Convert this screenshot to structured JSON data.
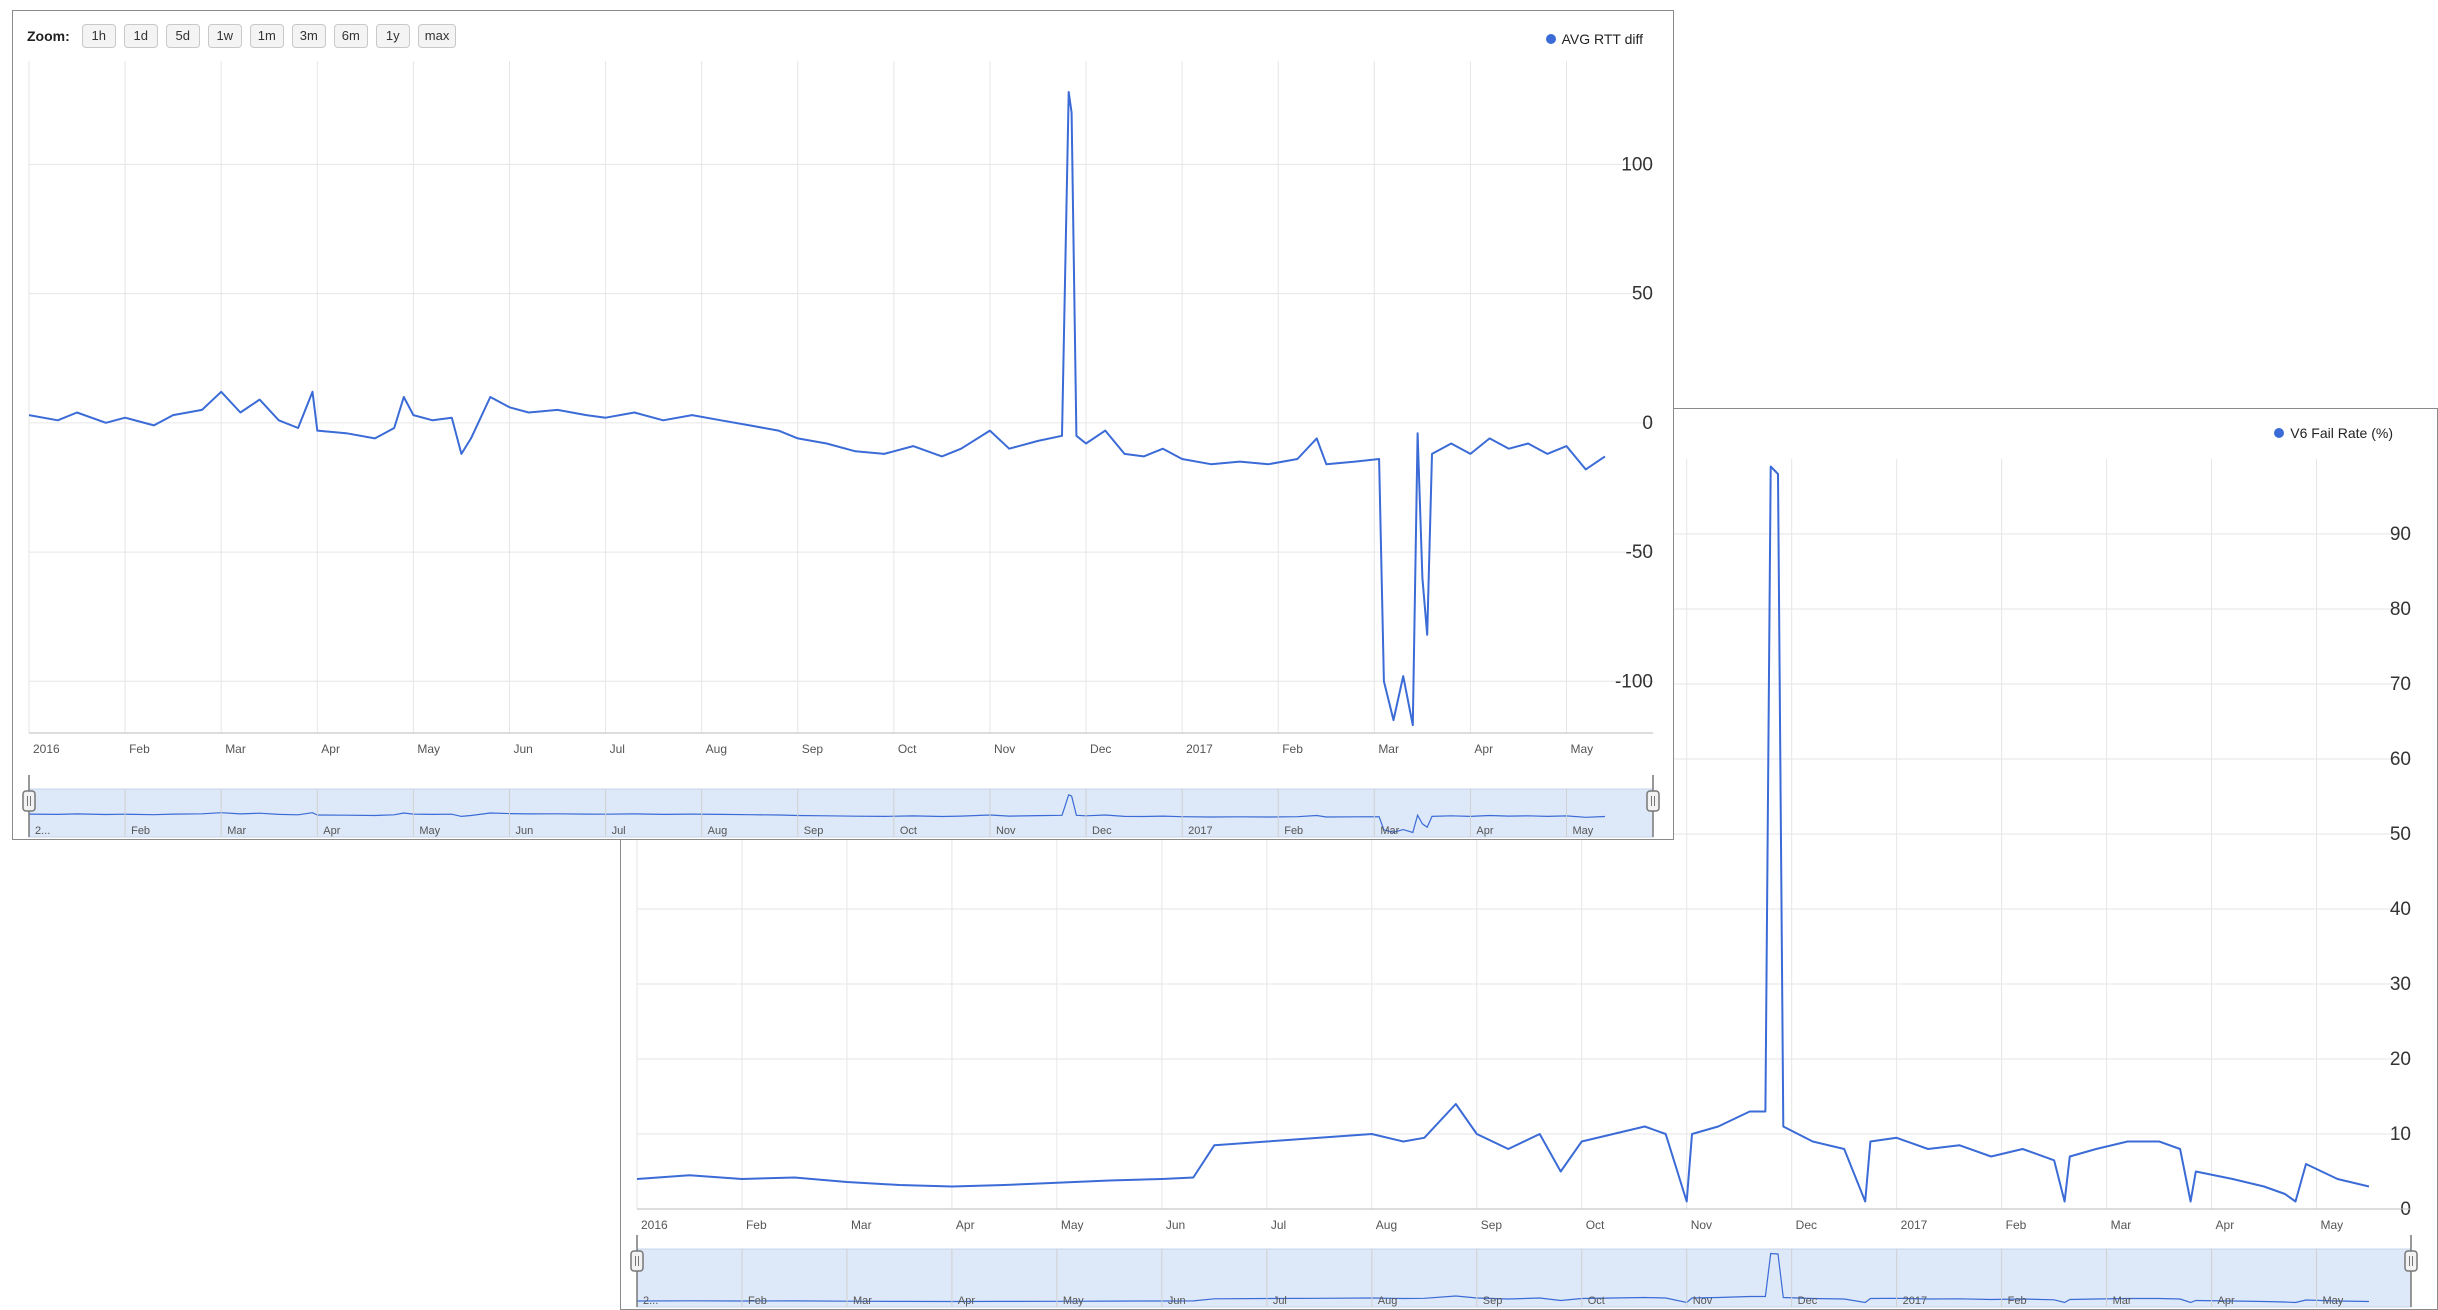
{
  "zoom": {
    "label": "Zoom:",
    "buttons": [
      "1h",
      "1d",
      "5d",
      "1w",
      "1m",
      "3m",
      "6m",
      "1y",
      "max"
    ]
  },
  "colors": {
    "line": "#3b6bd6",
    "grid": "#e6e6e6",
    "navigator_fill": "#dde8f8"
  },
  "chart_data": [
    {
      "type": "line",
      "legend": "AVG RTT diff",
      "legend_placement": "top-right",
      "y_axis_side": "right",
      "ylim": [
        -120,
        140
      ],
      "yticks": [
        100,
        50,
        0,
        -50,
        -100
      ],
      "xticks": [
        "2016",
        "Feb",
        "Mar",
        "Apr",
        "May",
        "Jun",
        "Jul",
        "Aug",
        "Sep",
        "Oct",
        "Nov",
        "Dec",
        "2017",
        "Feb",
        "Mar",
        "Apr",
        "May"
      ],
      "navigator_ticks": [
        "2...",
        "Feb",
        "Mar",
        "Apr",
        "May",
        "Jun",
        "Jul",
        "Aug",
        "Sep",
        "Oct",
        "Nov",
        "Dec",
        "2017",
        "Feb",
        "Mar",
        "Apr",
        "May"
      ],
      "grid": true,
      "x_range_months": [
        0,
        16.9
      ],
      "series": [
        {
          "name": "AVG RTT diff",
          "points": [
            [
              0.0,
              3
            ],
            [
              0.3,
              1
            ],
            [
              0.5,
              4
            ],
            [
              0.8,
              0
            ],
            [
              1.0,
              2
            ],
            [
              1.3,
              -1
            ],
            [
              1.5,
              3
            ],
            [
              1.8,
              5
            ],
            [
              2.0,
              12
            ],
            [
              2.2,
              4
            ],
            [
              2.4,
              9
            ],
            [
              2.6,
              1
            ],
            [
              2.8,
              -2
            ],
            [
              2.95,
              12
            ],
            [
              3.0,
              -3
            ],
            [
              3.3,
              -4
            ],
            [
              3.6,
              -6
            ],
            [
              3.8,
              -2
            ],
            [
              3.9,
              10
            ],
            [
              4.0,
              3
            ],
            [
              4.2,
              1
            ],
            [
              4.4,
              2
            ],
            [
              4.5,
              -12
            ],
            [
              4.6,
              -6
            ],
            [
              4.8,
              10
            ],
            [
              5.0,
              6
            ],
            [
              5.2,
              4
            ],
            [
              5.5,
              5
            ],
            [
              5.8,
              3
            ],
            [
              6.0,
              2
            ],
            [
              6.3,
              4
            ],
            [
              6.6,
              1
            ],
            [
              6.9,
              3
            ],
            [
              7.2,
              1
            ],
            [
              7.5,
              -1
            ],
            [
              7.8,
              -3
            ],
            [
              8.0,
              -6
            ],
            [
              8.3,
              -8
            ],
            [
              8.6,
              -11
            ],
            [
              8.9,
              -12
            ],
            [
              9.2,
              -9
            ],
            [
              9.5,
              -13
            ],
            [
              9.7,
              -10
            ],
            [
              10.0,
              -3
            ],
            [
              10.2,
              -10
            ],
            [
              10.5,
              -7
            ],
            [
              10.75,
              -5
            ],
            [
              10.82,
              128
            ],
            [
              10.85,
              120
            ],
            [
              10.9,
              -5
            ],
            [
              11.0,
              -8
            ],
            [
              11.2,
              -3
            ],
            [
              11.4,
              -12
            ],
            [
              11.6,
              -13
            ],
            [
              11.8,
              -10
            ],
            [
              12.0,
              -14
            ],
            [
              12.3,
              -16
            ],
            [
              12.6,
              -15
            ],
            [
              12.9,
              -16
            ],
            [
              13.2,
              -14
            ],
            [
              13.4,
              -6
            ],
            [
              13.5,
              -16
            ],
            [
              13.8,
              -15
            ],
            [
              14.05,
              -14
            ],
            [
              14.1,
              -100
            ],
            [
              14.2,
              -115
            ],
            [
              14.3,
              -98
            ],
            [
              14.4,
              -117
            ],
            [
              14.45,
              -4
            ],
            [
              14.5,
              -60
            ],
            [
              14.55,
              -82
            ],
            [
              14.6,
              -12
            ],
            [
              14.8,
              -8
            ],
            [
              15.0,
              -12
            ],
            [
              15.2,
              -6
            ],
            [
              15.4,
              -10
            ],
            [
              15.6,
              -8
            ],
            [
              15.8,
              -12
            ],
            [
              16.0,
              -9
            ],
            [
              16.2,
              -18
            ],
            [
              16.4,
              -13
            ]
          ]
        }
      ]
    },
    {
      "type": "line",
      "legend": "V6 Fail Rate (%)",
      "legend_placement": "top-right",
      "y_axis_side": "right",
      "ylim": [
        0,
        100
      ],
      "yticks": [
        90,
        80,
        70,
        60,
        50,
        40,
        30,
        20,
        10,
        0
      ],
      "xticks": [
        "2016",
        "Feb",
        "Mar",
        "Apr",
        "May",
        "Jun",
        "Jul",
        "Aug",
        "Sep",
        "Oct",
        "Nov",
        "Dec",
        "2017",
        "Feb",
        "Mar",
        "Apr",
        "May"
      ],
      "navigator_ticks": [
        "2...",
        "Feb",
        "Mar",
        "Apr",
        "May",
        "Jun",
        "Jul",
        "Aug",
        "Sep",
        "Oct",
        "Nov",
        "Dec",
        "2017",
        "Feb",
        "Mar",
        "Apr",
        "May"
      ],
      "grid": true,
      "x_range_months": [
        0,
        16.9
      ],
      "series": [
        {
          "name": "V6 Fail Rate (%)",
          "points": [
            [
              0.0,
              4
            ],
            [
              0.5,
              4.5
            ],
            [
              1.0,
              4
            ],
            [
              1.5,
              4.2
            ],
            [
              2.0,
              3.6
            ],
            [
              2.5,
              3.2
            ],
            [
              3.0,
              3
            ],
            [
              3.5,
              3.2
            ],
            [
              4.0,
              3.5
            ],
            [
              4.5,
              3.8
            ],
            [
              5.0,
              4
            ],
            [
              5.3,
              4.2
            ],
            [
              5.5,
              8.5
            ],
            [
              6.0,
              9
            ],
            [
              6.5,
              9.5
            ],
            [
              7.0,
              10
            ],
            [
              7.3,
              9
            ],
            [
              7.5,
              9.5
            ],
            [
              7.8,
              14
            ],
            [
              8.0,
              10
            ],
            [
              8.3,
              8
            ],
            [
              8.6,
              10
            ],
            [
              8.8,
              5
            ],
            [
              9.0,
              9
            ],
            [
              9.3,
              10
            ],
            [
              9.6,
              11
            ],
            [
              9.8,
              10
            ],
            [
              10.0,
              1
            ],
            [
              10.05,
              10
            ],
            [
              10.3,
              11
            ],
            [
              10.6,
              13
            ],
            [
              10.75,
              13
            ],
            [
              10.8,
              99
            ],
            [
              10.87,
              98
            ],
            [
              10.92,
              11
            ],
            [
              11.2,
              9
            ],
            [
              11.5,
              8
            ],
            [
              11.7,
              1
            ],
            [
              11.75,
              9
            ],
            [
              12.0,
              9.5
            ],
            [
              12.3,
              8
            ],
            [
              12.6,
              8.5
            ],
            [
              12.9,
              7
            ],
            [
              13.2,
              8
            ],
            [
              13.5,
              6.5
            ],
            [
              13.6,
              1
            ],
            [
              13.65,
              7
            ],
            [
              13.9,
              8
            ],
            [
              14.2,
              9
            ],
            [
              14.5,
              9
            ],
            [
              14.7,
              8
            ],
            [
              14.8,
              1
            ],
            [
              14.85,
              5
            ],
            [
              15.2,
              4
            ],
            [
              15.5,
              3
            ],
            [
              15.7,
              2
            ],
            [
              15.8,
              1
            ],
            [
              15.9,
              6
            ],
            [
              16.2,
              4
            ],
            [
              16.5,
              3
            ]
          ]
        }
      ]
    }
  ]
}
